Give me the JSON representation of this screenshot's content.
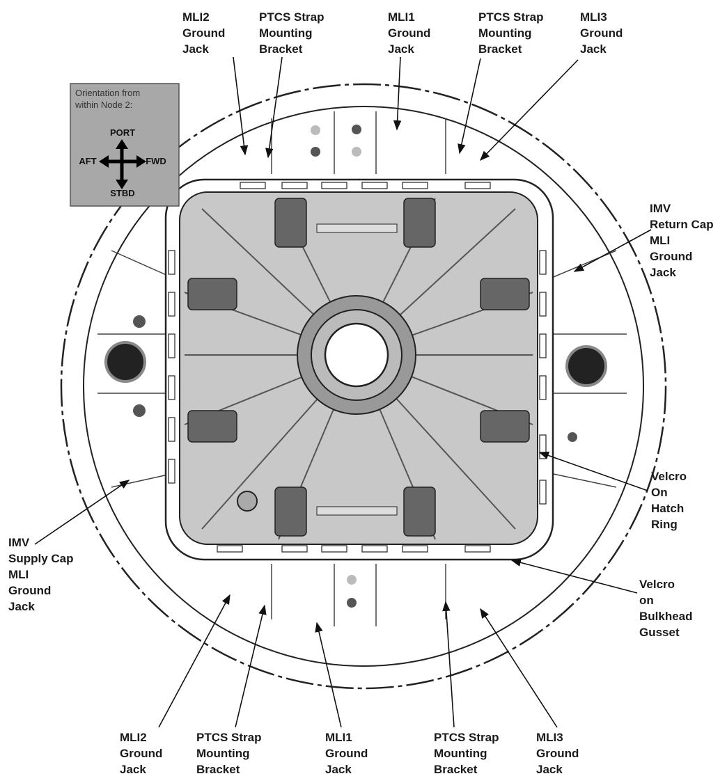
{
  "orientation": {
    "title": [
      "Orientation from",
      "within Node 2:"
    ],
    "port": "PORT",
    "aft": "AFT",
    "fwd": "FWD",
    "stbd": "STBD"
  },
  "callouts": [
    {
      "lines": [
        "MLI2",
        "Ground",
        "Jack"
      ]
    },
    {
      "lines": [
        "PTCS Strap",
        "Mounting",
        "Bracket"
      ]
    },
    {
      "lines": [
        "MLI1",
        "Ground",
        "Jack"
      ]
    },
    {
      "lines": [
        "PTCS Strap",
        "Mounting",
        "Bracket"
      ]
    },
    {
      "lines": [
        "MLI3",
        "Ground",
        "Jack"
      ]
    },
    {
      "lines": [
        "IMV",
        "Return Cap",
        "MLI",
        "Ground",
        "Jack"
      ]
    },
    {
      "lines": [
        "Velcro",
        "On",
        "Hatch",
        "Ring"
      ]
    },
    {
      "lines": [
        "Velcro",
        "on",
        "Bulkhead",
        "Gusset"
      ]
    },
    {
      "lines": [
        "IMV",
        "Supply Cap",
        "MLI",
        "Ground",
        "Jack"
      ]
    },
    {
      "lines": [
        "MLI2",
        "Ground",
        "Jack"
      ]
    },
    {
      "lines": [
        "PTCS Strap",
        "Mounting",
        "Bracket"
      ]
    },
    {
      "lines": [
        "MLI1",
        "Ground",
        "Jack"
      ]
    },
    {
      "lines": [
        "PTCS Strap",
        "Mounting",
        "Bracket"
      ]
    },
    {
      "lines": [
        "MLI3",
        "Ground",
        "Jack"
      ]
    }
  ]
}
